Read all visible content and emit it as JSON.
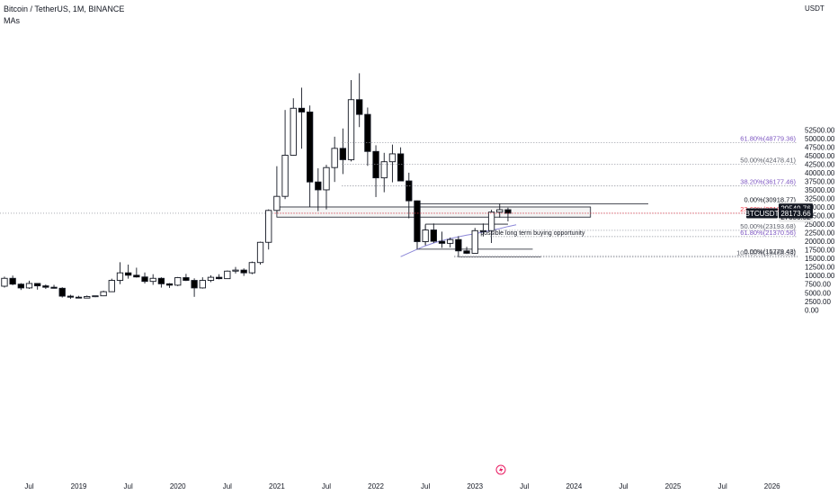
{
  "header": {
    "title": "Bitcoin / TetherUS, 1M, BINANCE",
    "indicator": "MAs",
    "currency": "USDT"
  },
  "colors": {
    "bull_fill": "#ffffff",
    "bear_fill": "#000000",
    "ma_line": "#8c88d8",
    "fib_grid": "#9598a1",
    "fib_label": "#5d606b",
    "fib_purple": "#7e57c2",
    "current_price_bg": "#131722",
    "flag_bg": "#ebebeb",
    "price_line": "#b71c1c"
  },
  "chart_data": {
    "type": "candlestick",
    "timeframe": "1M",
    "ylim": [
      0,
      55000
    ],
    "y_ticks": [
      0,
      2500,
      5000,
      7500,
      10000,
      12500,
      15000,
      17500,
      20000,
      22500,
      25000,
      27500,
      30000,
      32500,
      35000,
      37500,
      40000,
      42500,
      45000,
      47500,
      50000,
      52500
    ],
    "y_tick_labels": [
      "0.00",
      "2500.00",
      "5000.00",
      "7500.00",
      "10000.00",
      "12500.00",
      "15000.00",
      "17500.00",
      "20000.00",
      "22500.00",
      "25000.00",
      "27500.00",
      "30000.00",
      "32500.00",
      "35000.00",
      "37500.00",
      "40000.00",
      "42500.00",
      "45000.00",
      "47500.00",
      "50000.00",
      "52500.00"
    ],
    "x_ticks": [
      {
        "month": "2018-07",
        "label": "Jul"
      },
      {
        "month": "2019-01",
        "label": "2019"
      },
      {
        "month": "2019-07",
        "label": "Jul"
      },
      {
        "month": "2020-01",
        "label": "2020"
      },
      {
        "month": "2020-07",
        "label": "Jul"
      },
      {
        "month": "2021-01",
        "label": "2021"
      },
      {
        "month": "2021-07",
        "label": "Jul"
      },
      {
        "month": "2022-01",
        "label": "2022"
      },
      {
        "month": "2022-07",
        "label": "Jul"
      },
      {
        "month": "2023-01",
        "label": "2023"
      },
      {
        "month": "2023-07",
        "label": "Jul"
      },
      {
        "month": "2024-01",
        "label": "2024"
      },
      {
        "month": "2024-07",
        "label": "Jul"
      },
      {
        "month": "2025-01",
        "label": "2025"
      },
      {
        "month": "2025-07",
        "label": "Jul"
      },
      {
        "month": "2026-01",
        "label": "2026"
      },
      {
        "month": "2026-07",
        "label": "Jul"
      }
    ],
    "candles": [
      {
        "month": "2018-03",
        "o": 10300,
        "h": 11700,
        "l": 7000,
        "c": 6900
      },
      {
        "month": "2018-04",
        "o": 6900,
        "h": 9700,
        "l": 6500,
        "c": 9200
      },
      {
        "month": "2018-05",
        "o": 9200,
        "h": 10000,
        "l": 7200,
        "c": 7500
      },
      {
        "month": "2018-06",
        "o": 7500,
        "h": 7800,
        "l": 5800,
        "c": 6400
      },
      {
        "month": "2018-07",
        "o": 6400,
        "h": 8500,
        "l": 6100,
        "c": 7700
      },
      {
        "month": "2018-08",
        "o": 7700,
        "h": 7800,
        "l": 5900,
        "c": 7000
      },
      {
        "month": "2018-09",
        "o": 7000,
        "h": 7400,
        "l": 6100,
        "c": 6600
      },
      {
        "month": "2018-10",
        "o": 6600,
        "h": 7300,
        "l": 6200,
        "c": 6300
      },
      {
        "month": "2018-11",
        "o": 6300,
        "h": 6600,
        "l": 3600,
        "c": 4000
      },
      {
        "month": "2018-12",
        "o": 4000,
        "h": 4400,
        "l": 3200,
        "c": 3700
      },
      {
        "month": "2019-01",
        "o": 3700,
        "h": 4100,
        "l": 3400,
        "c": 3450
      },
      {
        "month": "2019-02",
        "o": 3450,
        "h": 4200,
        "l": 3400,
        "c": 3900
      },
      {
        "month": "2019-03",
        "o": 3900,
        "h": 4100,
        "l": 3700,
        "c": 4100
      },
      {
        "month": "2019-04",
        "o": 4100,
        "h": 5600,
        "l": 4000,
        "c": 5300
      },
      {
        "month": "2019-05",
        "o": 5300,
        "h": 9100,
        "l": 5200,
        "c": 8600
      },
      {
        "month": "2019-06",
        "o": 8600,
        "h": 13900,
        "l": 7500,
        "c": 10800
      },
      {
        "month": "2019-07",
        "o": 10800,
        "h": 13200,
        "l": 9100,
        "c": 10100
      },
      {
        "month": "2019-08",
        "o": 10100,
        "h": 12300,
        "l": 9400,
        "c": 9600
      },
      {
        "month": "2019-09",
        "o": 9600,
        "h": 10900,
        "l": 7700,
        "c": 8300
      },
      {
        "month": "2019-10",
        "o": 8300,
        "h": 10400,
        "l": 7300,
        "c": 9200
      },
      {
        "month": "2019-11",
        "o": 9200,
        "h": 9500,
        "l": 6500,
        "c": 7600
      },
      {
        "month": "2019-12",
        "o": 7600,
        "h": 7800,
        "l": 6400,
        "c": 7200
      },
      {
        "month": "2020-01",
        "o": 7200,
        "h": 9600,
        "l": 6900,
        "c": 9400
      },
      {
        "month": "2020-02",
        "o": 9400,
        "h": 10500,
        "l": 8400,
        "c": 8600
      },
      {
        "month": "2020-03",
        "o": 8600,
        "h": 9200,
        "l": 3800,
        "c": 6400
      },
      {
        "month": "2020-04",
        "o": 6400,
        "h": 9500,
        "l": 6200,
        "c": 8600
      },
      {
        "month": "2020-05",
        "o": 8600,
        "h": 10100,
        "l": 8100,
        "c": 9500
      },
      {
        "month": "2020-06",
        "o": 9500,
        "h": 10400,
        "l": 8900,
        "c": 9100
      },
      {
        "month": "2020-07",
        "o": 9100,
        "h": 11500,
        "l": 9000,
        "c": 11300
      },
      {
        "month": "2020-08",
        "o": 11300,
        "h": 12500,
        "l": 10600,
        "c": 11600
      },
      {
        "month": "2020-09",
        "o": 11600,
        "h": 12100,
        "l": 9900,
        "c": 10800
      },
      {
        "month": "2020-10",
        "o": 10800,
        "h": 14100,
        "l": 10400,
        "c": 13800
      },
      {
        "month": "2020-11",
        "o": 13800,
        "h": 19900,
        "l": 13200,
        "c": 19700
      },
      {
        "month": "2020-12",
        "o": 19700,
        "h": 29300,
        "l": 17600,
        "c": 29000
      },
      {
        "month": "2021-01",
        "o": 29000,
        "h": 41900,
        "l": 28100,
        "c": 33100
      },
      {
        "month": "2021-02",
        "o": 33100,
        "h": 58300,
        "l": 32300,
        "c": 45100
      },
      {
        "month": "2021-03",
        "o": 45100,
        "h": 61700,
        "l": 45000,
        "c": 58800
      },
      {
        "month": "2021-04",
        "o": 58800,
        "h": 64800,
        "l": 47000,
        "c": 57700
      },
      {
        "month": "2021-05",
        "o": 57700,
        "h": 59600,
        "l": 30000,
        "c": 37300
      },
      {
        "month": "2021-06",
        "o": 37300,
        "h": 41300,
        "l": 28800,
        "c": 35000
      },
      {
        "month": "2021-07",
        "o": 35000,
        "h": 42300,
        "l": 29300,
        "c": 41500
      },
      {
        "month": "2021-08",
        "o": 41500,
        "h": 50500,
        "l": 37300,
        "c": 47100
      },
      {
        "month": "2021-09",
        "o": 47100,
        "h": 52900,
        "l": 39600,
        "c": 43800
      },
      {
        "month": "2021-10",
        "o": 43800,
        "h": 67000,
        "l": 43300,
        "c": 61300
      },
      {
        "month": "2021-11",
        "o": 61300,
        "h": 69000,
        "l": 53300,
        "c": 57000
      },
      {
        "month": "2021-12",
        "o": 57000,
        "h": 59000,
        "l": 42000,
        "c": 46200
      },
      {
        "month": "2022-01",
        "o": 46200,
        "h": 48000,
        "l": 32900,
        "c": 38500
      },
      {
        "month": "2022-02",
        "o": 38500,
        "h": 45800,
        "l": 34300,
        "c": 43200
      },
      {
        "month": "2022-03",
        "o": 43200,
        "h": 48200,
        "l": 37200,
        "c": 45500
      },
      {
        "month": "2022-04",
        "o": 45500,
        "h": 47400,
        "l": 37700,
        "c": 37600
      },
      {
        "month": "2022-05",
        "o": 37600,
        "h": 40000,
        "l": 26700,
        "c": 31800
      },
      {
        "month": "2022-06",
        "o": 31800,
        "h": 31900,
        "l": 17600,
        "c": 19900
      },
      {
        "month": "2022-07",
        "o": 19900,
        "h": 24700,
        "l": 18800,
        "c": 23300
      },
      {
        "month": "2022-08",
        "o": 23300,
        "h": 25200,
        "l": 19500,
        "c": 20000
      },
      {
        "month": "2022-09",
        "o": 20000,
        "h": 22800,
        "l": 18100,
        "c": 19400
      },
      {
        "month": "2022-10",
        "o": 19400,
        "h": 21100,
        "l": 18200,
        "c": 20500
      },
      {
        "month": "2022-11",
        "o": 20500,
        "h": 21500,
        "l": 15500,
        "c": 17200
      },
      {
        "month": "2022-12",
        "o": 17200,
        "h": 18400,
        "l": 16300,
        "c": 16500
      },
      {
        "month": "2023-01",
        "o": 16500,
        "h": 23900,
        "l": 16500,
        "c": 23100
      },
      {
        "month": "2023-02",
        "o": 23100,
        "h": 25200,
        "l": 21400,
        "c": 23100
      },
      {
        "month": "2023-03",
        "o": 23100,
        "h": 29200,
        "l": 19500,
        "c": 28500
      },
      {
        "month": "2023-04",
        "o": 28500,
        "h": 31000,
        "l": 26900,
        "c": 29200
      },
      {
        "month": "2023-05",
        "o": 29200,
        "h": 29800,
        "l": 25800,
        "c": 28173.66
      }
    ],
    "ma": {
      "start_month": "2022-04",
      "values": [
        15500,
        16600,
        17700,
        18700,
        19500,
        20200,
        20800,
        21300,
        21800,
        22200,
        22700,
        23200,
        23700,
        24300,
        24800
      ]
    },
    "fib_levels": [
      {
        "ratio": "61.80%",
        "price": 48779.36,
        "label": "61.80%(48779.36)",
        "color": "#7e57c2"
      },
      {
        "ratio": "50.00%",
        "price": 42478.41,
        "label": "50.00%(42478.41)",
        "color": "#5d606b"
      },
      {
        "ratio": "38.20%",
        "price": 36177.46,
        "label": "38.20%(36177.46)",
        "color": "#7e57c2"
      },
      {
        "ratio": "0.00%",
        "price": 30918.77,
        "label": "0.00%(30918.77)",
        "color": "#131722"
      },
      {
        "ratio": "23.60%",
        "price": 28181.37,
        "label": "23.60%(28181.37)",
        "color": "#f23645"
      },
      {
        "ratio": "50.00%",
        "price": 23193.68,
        "label": "50.00%(23193.68)",
        "color": "#5d606b"
      },
      {
        "ratio": "61.80%",
        "price": 21370.56,
        "label": "61.80%(21370.56)",
        "color": "#7e57c2"
      },
      {
        "ratio": "0.00%",
        "price": 15779.43,
        "label": "0.00%(15779.43)",
        "color": "#131722"
      },
      {
        "ratio": "100.00%",
        "price": 15468.59,
        "label": "100.00%(15468.59)",
        "color": "#5d606b"
      }
    ],
    "zone": {
      "from_month": "2021-01",
      "to_month": "2024-03",
      "top": 30004.98,
      "bottom": 27050.52
    },
    "hlines": [
      {
        "from_month": "2022-06",
        "to_month": "2024-10",
        "price": 30918.77
      },
      {
        "from_month": "2022-07",
        "to_month": "2023-05",
        "price": 25000
      },
      {
        "from_month": "2022-06",
        "to_month": "2023-08",
        "price": 17700
      },
      {
        "from_month": "2022-11",
        "to_month": "2023-09",
        "price": 15468.59
      }
    ],
    "price_flags": [
      {
        "value": 30004.98,
        "label": "30004.98",
        "bg": "#ebebeb",
        "fg": "#131722"
      },
      {
        "value": 29549.76,
        "label": "29549.76",
        "bg": "#131722",
        "fg": "#ffffff"
      },
      {
        "value": 27050.52,
        "label": "27050.52",
        "bg": "#ebebeb",
        "fg": "#131722"
      }
    ],
    "current_price": {
      "symbol": "BTCUSDT",
      "value": 28173.66,
      "label": "28173.66"
    },
    "annotation": {
      "month": "2023-02",
      "price": 21800,
      "text": "possible long term buying opportunity"
    }
  }
}
